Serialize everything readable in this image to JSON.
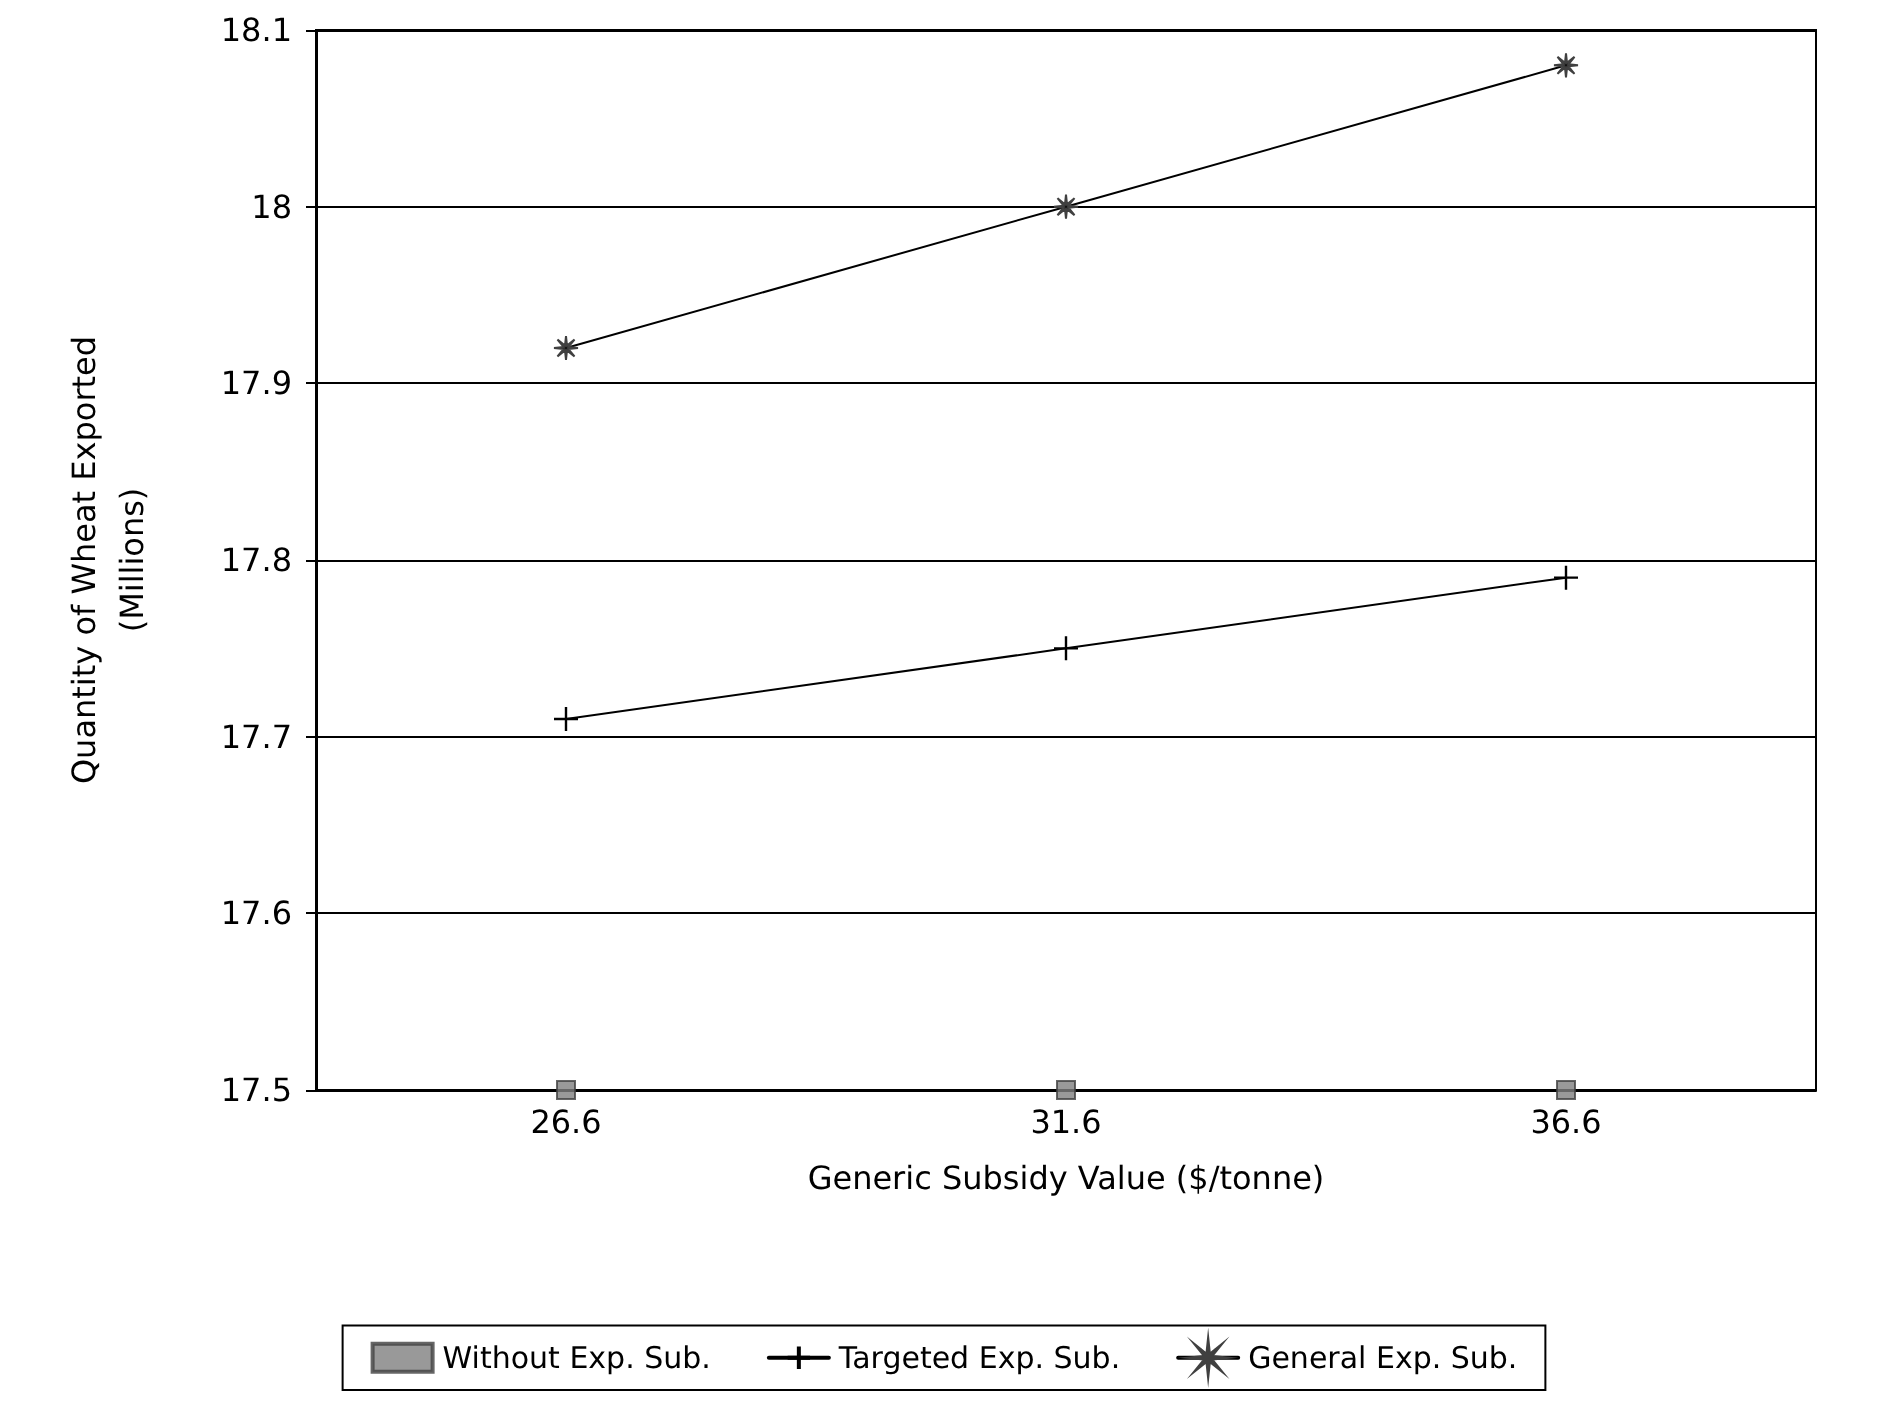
{
  "chart_data": {
    "type": "line",
    "xlabel": "Generic Subsidy Value ($/tonne)",
    "ylabel": "Quantity of Wheat Exported\n(Millions)",
    "categories": [
      "26.6",
      "31.6",
      "36.6"
    ],
    "series": [
      {
        "name": "Without Exp. Sub.",
        "type": "scatter",
        "color": "#808080",
        "marker": "square",
        "values": [
          17.5,
          17.5,
          17.5
        ]
      },
      {
        "name": "Targeted Exp. Sub.",
        "color": "#000000",
        "marker": "cross",
        "values": [
          17.71,
          17.75,
          17.79
        ]
      },
      {
        "name": "General Exp. Sub.",
        "color": "#000000",
        "marker": "star",
        "values": [
          17.92,
          18.0,
          18.08
        ]
      }
    ],
    "ylim": [
      17.5,
      18.1
    ],
    "yticks": [
      17.5,
      17.6,
      17.7,
      17.8,
      17.9,
      18,
      18.1
    ],
    "grid": "y",
    "legend": "bottom",
    "line_style": "solid"
  }
}
